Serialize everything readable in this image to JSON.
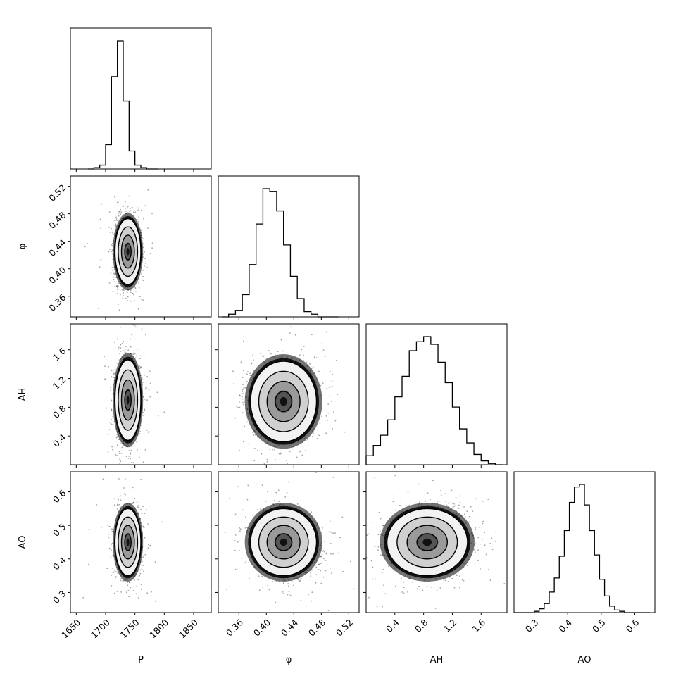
{
  "chart_data": {
    "type": "corner",
    "parameters": [
      {
        "key": "P",
        "label": "P",
        "range": [
          1640,
          1880
        ],
        "ticks": [
          1650,
          1700,
          1750,
          1800,
          1850
        ],
        "tick_labels": [
          "1650",
          "1700",
          "1750",
          "1800",
          "1850"
        ]
      },
      {
        "key": "phi",
        "label": "φ",
        "range": [
          0.33,
          0.535
        ],
        "ticks": [
          0.36,
          0.4,
          0.44,
          0.48,
          0.52
        ],
        "tick_labels": [
          "0.36",
          "0.40",
          "0.44",
          "0.48",
          "0.52"
        ]
      },
      {
        "key": "AH",
        "label": "AH",
        "range": [
          0.0,
          1.96
        ],
        "ticks": [
          0.4,
          0.8,
          1.2,
          1.6
        ],
        "tick_labels": [
          "0.4",
          "0.8",
          "1.2",
          "1.6"
        ]
      },
      {
        "key": "AO",
        "label": "AO",
        "range": [
          0.24,
          0.66
        ],
        "ticks": [
          0.3,
          0.4,
          0.5,
          0.6
        ],
        "tick_labels": [
          "0.3",
          "0.4",
          "0.5",
          "0.6"
        ]
      }
    ],
    "histograms": [
      {
        "param": "P",
        "bin_edges": [
          1670,
          1680,
          1690,
          1700,
          1710,
          1720,
          1730,
          1740,
          1750,
          1760,
          1770,
          1780,
          1790
        ],
        "values": [
          0.0,
          0.01,
          0.03,
          0.19,
          0.72,
          1.0,
          0.53,
          0.14,
          0.03,
          0.01,
          0.0,
          0.0
        ]
      },
      {
        "param": "phi",
        "bin_edges": [
          0.335,
          0.345,
          0.355,
          0.365,
          0.375,
          0.385,
          0.395,
          0.405,
          0.415,
          0.425,
          0.435,
          0.445,
          0.455,
          0.465,
          0.475,
          0.485,
          0.495,
          0.505
        ],
        "values": [
          0.0,
          0.02,
          0.05,
          0.17,
          0.4,
          0.71,
          0.98,
          0.96,
          0.81,
          0.55,
          0.31,
          0.14,
          0.04,
          0.02,
          0.0,
          0.0,
          0.0
        ]
      },
      {
        "param": "AH",
        "bin_edges": [
          0.0,
          0.1,
          0.2,
          0.3,
          0.4,
          0.5,
          0.6,
          0.7,
          0.8,
          0.9,
          1.0,
          1.1,
          1.2,
          1.3,
          1.4,
          1.5,
          1.6,
          1.7,
          1.8,
          1.9
        ],
        "values": [
          0.07,
          0.15,
          0.23,
          0.35,
          0.53,
          0.69,
          0.89,
          0.96,
          1.0,
          0.94,
          0.8,
          0.64,
          0.45,
          0.28,
          0.17,
          0.08,
          0.03,
          0.01,
          0.0
        ]
      },
      {
        "param": "AO",
        "bin_edges": [
          0.24,
          0.255,
          0.27,
          0.285,
          0.3,
          0.315,
          0.33,
          0.345,
          0.36,
          0.375,
          0.39,
          0.405,
          0.42,
          0.435,
          0.45,
          0.465,
          0.48,
          0.495,
          0.51,
          0.525,
          0.54,
          0.555,
          0.57,
          0.585,
          0.6,
          0.615,
          0.63,
          0.645
        ],
        "values": [
          0,
          0,
          0,
          0,
          0.01,
          0.03,
          0.07,
          0.16,
          0.27,
          0.44,
          0.64,
          0.86,
          0.98,
          1.0,
          0.84,
          0.64,
          0.45,
          0.26,
          0.13,
          0.05,
          0.02,
          0.01,
          0,
          0,
          0,
          0,
          0
        ]
      }
    ],
    "pair_plots": [
      {
        "x": "P",
        "y": "phi",
        "center": [
          1738,
          0.425
        ],
        "sigma": [
          11,
          0.024
        ],
        "correlation": 0.0,
        "contour_levels_sigma": [
          0.5,
          1.0,
          1.5,
          2.0
        ]
      },
      {
        "x": "P",
        "y": "AH",
        "center": [
          1738,
          0.9
        ],
        "sigma": [
          11,
          0.28
        ],
        "correlation": 0.0,
        "contour_levels_sigma": [
          0.5,
          1.0,
          1.5,
          2.0
        ]
      },
      {
        "x": "phi",
        "y": "AH",
        "center": [
          0.425,
          0.88
        ],
        "sigma": [
          0.024,
          0.28
        ],
        "correlation": 0.0,
        "contour_levels_sigma": [
          0.5,
          1.0,
          1.5,
          2.0
        ]
      },
      {
        "x": "P",
        "y": "AO",
        "center": [
          1738,
          0.45
        ],
        "sigma": [
          11,
          0.05
        ],
        "correlation": 0.0,
        "contour_levels_sigma": [
          0.5,
          1.0,
          1.5,
          2.0
        ]
      },
      {
        "x": "phi",
        "y": "AO",
        "center": [
          0.425,
          0.45
        ],
        "sigma": [
          0.024,
          0.05
        ],
        "correlation": -0.1,
        "contour_levels_sigma": [
          0.5,
          1.0,
          1.5,
          2.0
        ]
      },
      {
        "x": "AH",
        "y": "AO",
        "center": [
          0.85,
          0.45
        ],
        "sigma": [
          0.28,
          0.05
        ],
        "correlation": 0.05,
        "contour_levels_sigma": [
          0.5,
          1.0,
          1.5,
          2.0
        ]
      }
    ],
    "colors": {
      "line": "#000000",
      "background": "#ffffff",
      "density_dark": "#000000",
      "density_light": "#f2f2f2"
    }
  }
}
